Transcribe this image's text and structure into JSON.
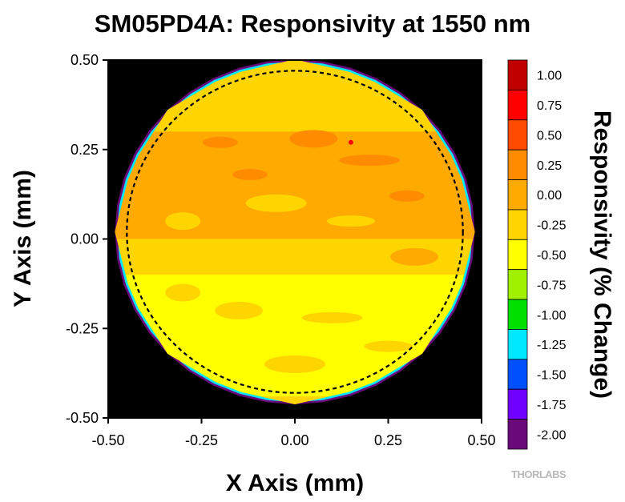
{
  "title": "SM05PD4A: Responsivity at 1550 nm",
  "watermark": "THORLABS",
  "chart_data": {
    "type": "heatmap",
    "title": "SM05PD4A: Responsivity at 1550 nm",
    "xlabel": "X Axis (mm)",
    "ylabel": "Y Axis (mm)",
    "xlim": [
      -0.5,
      0.5
    ],
    "ylim": [
      -0.5,
      0.5
    ],
    "x_ticks": [
      "-0.50",
      "-0.25",
      "0.00",
      "0.25",
      "0.50"
    ],
    "y_ticks": [
      "0.50",
      "0.25",
      "0.00",
      "-0.25",
      "-0.50"
    ],
    "aperture_circle": {
      "center": [
        0.0,
        0.02
      ],
      "radius": 0.45,
      "style": "dashed"
    },
    "background": "#000000",
    "colorbar": {
      "label": "Responsivity (% Change)",
      "levels": [
        {
          "value": "1.00",
          "color": "#c00000"
        },
        {
          "value": "0.75",
          "color": "#ff0000"
        },
        {
          "value": "0.50",
          "color": "#ff4a00"
        },
        {
          "value": "0.25",
          "color": "#ff8c00"
        },
        {
          "value": "0.00",
          "color": "#ffaa00"
        },
        {
          "value": "-0.25",
          "color": "#ffd500"
        },
        {
          "value": "-0.50",
          "color": "#ffff00"
        },
        {
          "value": "-0.75",
          "color": "#a0f000"
        },
        {
          "value": "-1.00",
          "color": "#00e000"
        },
        {
          "value": "-1.25",
          "color": "#00e8ff"
        },
        {
          "value": "-1.50",
          "color": "#0050ff"
        },
        {
          "value": "-1.75",
          "color": "#7000ff"
        },
        {
          "value": "-2.00",
          "color": "#6a0a7a"
        }
      ]
    },
    "regions": [
      {
        "description": "upper band",
        "y_range": [
          0.3,
          0.46
        ],
        "value": -0.25
      },
      {
        "description": "upper-middle band",
        "y_range": [
          0.0,
          0.3
        ],
        "value": 0.0
      },
      {
        "description": "middle band",
        "y_range": [
          -0.1,
          0.0
        ],
        "value": -0.25
      },
      {
        "description": "lower band",
        "y_range": [
          -0.44,
          -0.1
        ],
        "value": -0.5
      },
      {
        "description": "edge rim",
        "value": -0.75
      }
    ]
  }
}
